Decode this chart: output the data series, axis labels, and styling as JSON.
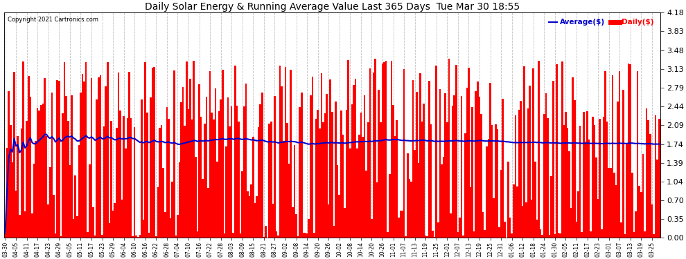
{
  "title": "Daily Solar Energy & Running Average Value Last 365 Days  Tue Mar 30 18:55",
  "copyright": "Copyright 2021 Cartronics.com",
  "legend_avg": "Average($)",
  "legend_daily": "Daily($)",
  "bar_color": "#ff0000",
  "avg_line_color": "#0000cc",
  "background_color": "#ffffff",
  "grid_color": "#b0b0b0",
  "ylim": [
    0,
    4.18
  ],
  "yticks": [
    0.0,
    0.35,
    0.7,
    1.04,
    1.39,
    1.74,
    2.09,
    2.44,
    2.79,
    3.13,
    3.48,
    3.83,
    4.18
  ],
  "n_days": 365,
  "seed": 7
}
